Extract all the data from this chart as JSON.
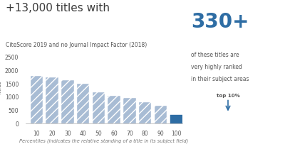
{
  "title_large": "+13,000 titles with",
  "title_small": "CiteScore 2019 and no Journal Impact Factor (2018)",
  "xlabel": "Percentiles (indicates the relative standing of a title in its subject field)",
  "ylabel": "Titles",
  "categories": [
    10,
    20,
    30,
    40,
    50,
    60,
    70,
    80,
    90,
    100
  ],
  "values": [
    1800,
    1760,
    1640,
    1510,
    1190,
    1050,
    960,
    820,
    690,
    340
  ],
  "bar_color_main": "#a8bcd4",
  "bar_color_highlight": "#2e6da4",
  "ylim": [
    0,
    2700
  ],
  "yticks": [
    0,
    500,
    1000,
    1500,
    2000,
    2500
  ],
  "annotation_large": "330+",
  "annotation_line1": "of these titles are",
  "annotation_line2": "very highly ranked",
  "annotation_line3": "in their subject areas",
  "annotation_top10": "top 10%",
  "bg_color": "#ffffff",
  "title_large_color": "#3a3a3a",
  "title_small_color": "#555555",
  "annotation_color": "#2e6da4",
  "annotation_text_color": "#555555",
  "hatch": "///",
  "arrow_color": "#2e6da4"
}
